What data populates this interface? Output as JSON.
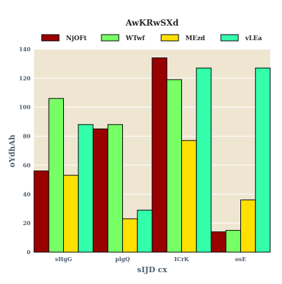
{
  "chart_data": {
    "type": "bar",
    "title": "AwKRwSXd",
    "xlabel": "sIJD cx",
    "ylabel": "oYdhAh",
    "categories": [
      "sHgG",
      "plgQ",
      "ICrK",
      "osE"
    ],
    "series": [
      {
        "name": "NjOFt",
        "color": "#990000",
        "values": [
          56,
          85,
          134,
          14
        ]
      },
      {
        "name": "WTwf",
        "color": "#77ff66",
        "values": [
          106,
          88,
          119,
          15
        ]
      },
      {
        "name": "MEzd",
        "color": "#ffe000",
        "values": [
          53,
          23,
          77,
          36
        ]
      },
      {
        "name": "vLEa",
        "color": "#33ffaa",
        "values": [
          88,
          29,
          127,
          127
        ]
      }
    ],
    "ylim": [
      0,
      140
    ],
    "yticks": [
      0,
      20,
      40,
      60,
      80,
      100,
      120,
      140
    ],
    "grid": true,
    "legend_position": "top",
    "plot_background": "#efe6d2",
    "grid_color": "#ffffff",
    "bar_edge_color": "#000000"
  }
}
